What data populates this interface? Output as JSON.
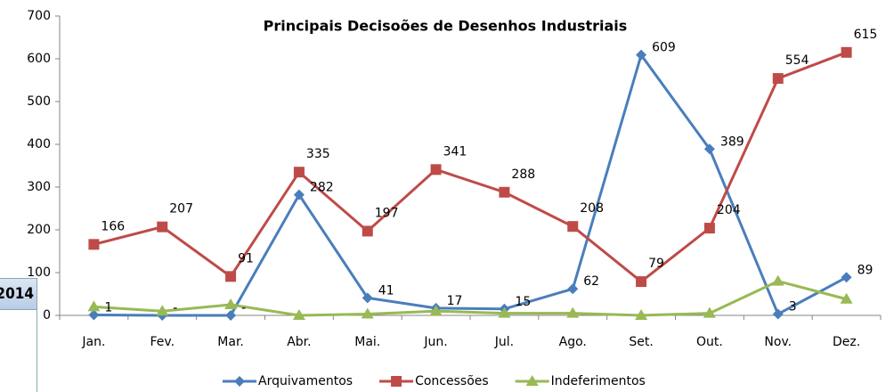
{
  "fragment": "2014",
  "chart_data": {
    "type": "line",
    "title": "Principais Decisoões de Desenhos Industriais",
    "categories": [
      "Jan.",
      "Fev.",
      "Mar.",
      "Abr.",
      "Mai.",
      "Jun.",
      "Jul.",
      "Ago.",
      "Set.",
      "Out.",
      "Nov.",
      "Dez."
    ],
    "ylim": [
      0,
      700
    ],
    "yticks": [
      0,
      100,
      200,
      300,
      400,
      500,
      600,
      700
    ],
    "grid": false,
    "legend": "bottom",
    "series": [
      {
        "name": "Arquivamentos",
        "color": "#4a7ebb",
        "marker": "diamond",
        "values": [
          1,
          0,
          0,
          282,
          41,
          17,
          15,
          62,
          609,
          389,
          3,
          89
        ],
        "value_labels": [
          "1",
          "-",
          "-",
          "282",
          "41",
          "17",
          "15",
          "62",
          "609",
          "389",
          "3",
          "89"
        ]
      },
      {
        "name": "Concessões",
        "color": "#be4b48",
        "marker": "square",
        "values": [
          166,
          207,
          91,
          335,
          197,
          341,
          288,
          208,
          79,
          204,
          554,
          615
        ]
      },
      {
        "name": "Indeferimentos",
        "color": "#98b954",
        "marker": "triangle",
        "values": [
          20,
          10,
          25,
          0,
          3,
          10,
          5,
          5,
          0,
          5,
          80,
          38
        ]
      }
    ]
  }
}
